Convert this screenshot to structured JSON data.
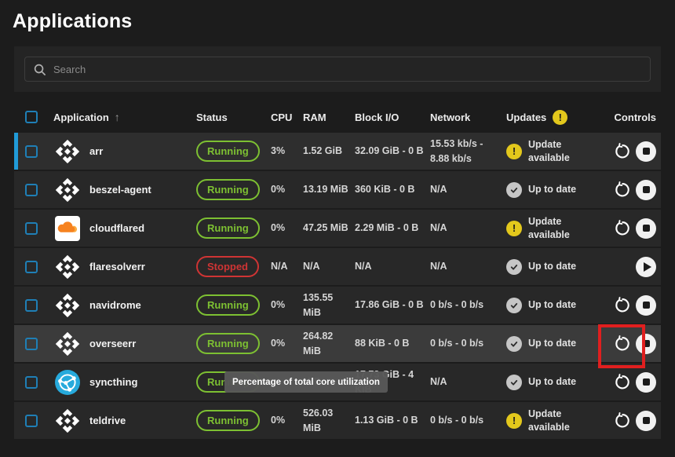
{
  "page": {
    "title": "Applications"
  },
  "search": {
    "placeholder": "Search"
  },
  "table": {
    "columns": {
      "application": "Application",
      "status": "Status",
      "cpu": "CPU",
      "ram": "RAM",
      "block_io": "Block I/O",
      "network": "Network",
      "updates": "Updates",
      "controls": "Controls"
    },
    "sort_icon": "↑",
    "updates_header_icon": "!",
    "rows": [
      {
        "name": "arr",
        "icon": "stack",
        "accent_bar": true,
        "hover": false,
        "status": "Running",
        "cpu": "3%",
        "ram": "1.52 GiB",
        "block_io": "32.09 GiB - 0 B",
        "network": "15.53 kb/s - 8.88 kb/s",
        "updates": {
          "state": "warning",
          "label": "Update available"
        },
        "controls": [
          "restart",
          "stop"
        ]
      },
      {
        "name": "beszel-agent",
        "icon": "stack",
        "accent_bar": false,
        "hover": false,
        "status": "Running",
        "cpu": "0%",
        "ram": "13.19 MiB",
        "block_io": "360 KiB - 0 B",
        "network": "N/A",
        "updates": {
          "state": "ok",
          "label": "Up to date"
        },
        "controls": [
          "restart",
          "stop"
        ]
      },
      {
        "name": "cloudflared",
        "icon": "cloudflare",
        "accent_bar": false,
        "hover": false,
        "status": "Running",
        "cpu": "0%",
        "ram": "47.25 MiB",
        "block_io": "2.29 MiB - 0 B",
        "network": "N/A",
        "updates": {
          "state": "warning",
          "label": "Update available"
        },
        "controls": [
          "restart",
          "stop"
        ]
      },
      {
        "name": "flaresolverr",
        "icon": "stack",
        "accent_bar": false,
        "hover": false,
        "status": "Stopped",
        "cpu": "N/A",
        "ram": "N/A",
        "block_io": "N/A",
        "network": "N/A",
        "updates": {
          "state": "ok",
          "label": "Up to date"
        },
        "controls": [
          "play"
        ]
      },
      {
        "name": "navidrome",
        "icon": "stack",
        "accent_bar": false,
        "hover": false,
        "status": "Running",
        "cpu": "0%",
        "ram": "135.55 MiB",
        "block_io": "17.86 GiB - 0 B",
        "network": "0 b/s - 0 b/s",
        "updates": {
          "state": "ok",
          "label": "Up to date"
        },
        "controls": [
          "restart",
          "stop"
        ]
      },
      {
        "name": "overseerr",
        "icon": "stack",
        "accent_bar": false,
        "hover": true,
        "status": "Running",
        "cpu": "0%",
        "ram": "264.82 MiB",
        "block_io": "88 KiB - 0 B",
        "network": "0 b/s - 0 b/s",
        "updates": {
          "state": "ok",
          "label": "Up to date"
        },
        "controls": [
          "restart",
          "stop"
        ]
      },
      {
        "name": "syncthing",
        "icon": "syncthing",
        "accent_bar": false,
        "hover": false,
        "status": "Running",
        "cpu": "",
        "ram": "MiB",
        "block_io": "17.73 GiB - 4 KiB",
        "network": "N/A",
        "updates": {
          "state": "ok",
          "label": "Up to date"
        },
        "controls": [
          "restart",
          "stop"
        ]
      },
      {
        "name": "teldrive",
        "icon": "stack",
        "accent_bar": false,
        "hover": false,
        "status": "Running",
        "cpu": "0%",
        "ram": "526.03 MiB",
        "block_io": "1.13 GiB - 0 B",
        "network": "0 b/s - 0 b/s",
        "updates": {
          "state": "warning",
          "label": "Update available"
        },
        "controls": [
          "restart",
          "stop"
        ]
      }
    ]
  },
  "tooltip": {
    "text": "Percentage of total core utilization"
  },
  "colors": {
    "accent_blue": "#219bd8",
    "checkbox_blue": "#1f7fb6",
    "running_green": "#7dc032",
    "stopped_red": "#cf3434",
    "warning_yellow": "#e3c81c",
    "uptodate_gray": "#c6c6c6",
    "highlight_red": "#e01f1f"
  }
}
